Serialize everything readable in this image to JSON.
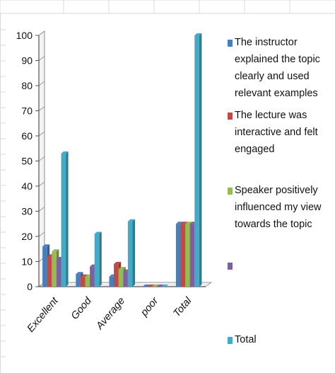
{
  "chart_data": {
    "type": "bar",
    "categories": [
      "Excellent",
      "Good",
      "Average",
      "poor",
      "Total"
    ],
    "series": [
      {
        "name": "The instructor explained the topic clearly and used relevant examples",
        "values": [
          16,
          5,
          4,
          0,
          25
        ]
      },
      {
        "name": "The lecture was interactive and felt engaged",
        "values": [
          12,
          4,
          9,
          0,
          25
        ]
      },
      {
        "name": "Speaker positively influenced my view towards the topic",
        "values": [
          14,
          4,
          7,
          0,
          25
        ]
      },
      {
        "name": "",
        "values": [
          11,
          8,
          6,
          0,
          25
        ]
      },
      {
        "name": "Total",
        "values": [
          53,
          21,
          26,
          0,
          100
        ]
      }
    ],
    "ylim": [
      0,
      100
    ],
    "yticks": [
      0,
      10,
      20,
      30,
      40,
      50,
      60,
      70,
      80,
      90,
      100
    ],
    "legend_position": "right",
    "grid": false
  },
  "colors": [
    "#4a7ebb",
    "#be4b48",
    "#98b954",
    "#7d60a0",
    "#46aac5"
  ]
}
